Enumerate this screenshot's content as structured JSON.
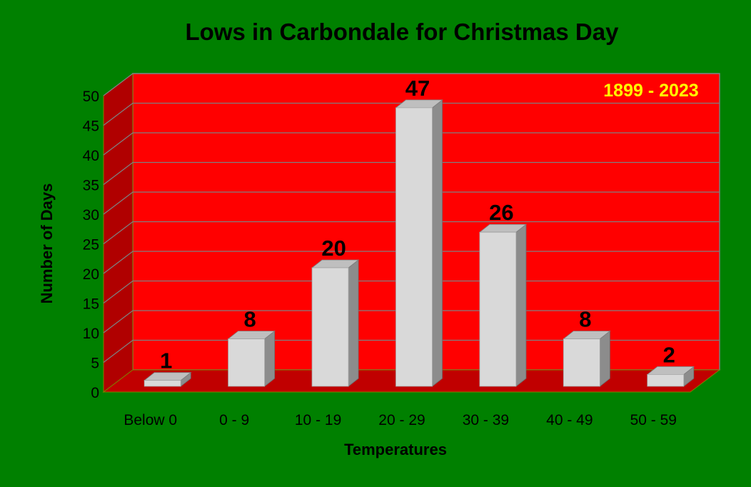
{
  "chart_data": {
    "type": "bar",
    "title": "Lows in Carbondale for Christmas Day",
    "annotation": "1899 - 2023",
    "xlabel": "Temperatures",
    "ylabel": "Number of Days",
    "categories": [
      "Below 0",
      "0 - 9",
      "10 - 19",
      "20 - 29",
      "30 - 39",
      "40 - 49",
      "50 - 59"
    ],
    "values": [
      1,
      8,
      20,
      47,
      26,
      8,
      2
    ],
    "ylim": [
      0,
      50
    ],
    "yticks": [
      0,
      5,
      10,
      15,
      20,
      25,
      30,
      35,
      40,
      45,
      50
    ],
    "grid": true,
    "legend": "none",
    "colors": {
      "background": "#008000",
      "plot_wall": "#FF0000",
      "side_wall": "#B00000",
      "floor": "#C00000",
      "bar_front": "#D9D9D9",
      "bar_top": "#BFBFBF",
      "bar_side": "#8C8C8C",
      "annotation": "#FFFF00",
      "text": "#000000"
    }
  }
}
